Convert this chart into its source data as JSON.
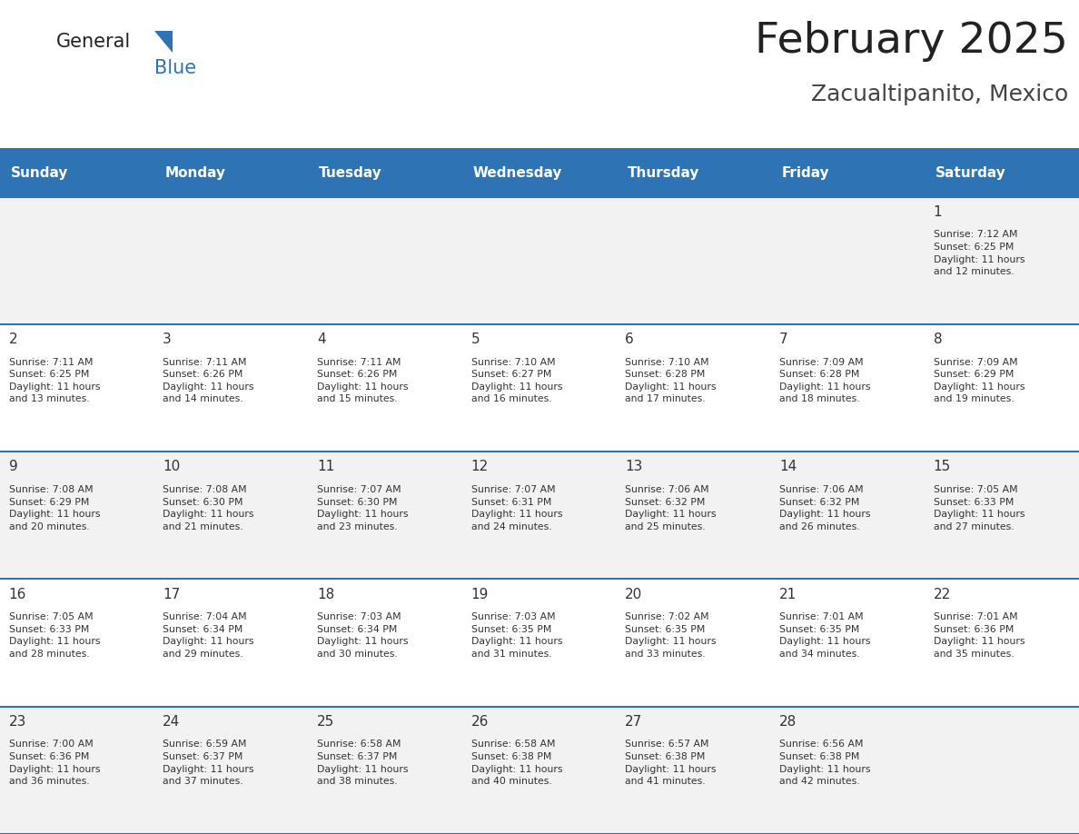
{
  "title": "February 2025",
  "subtitle": "Zacualtipanito, Mexico",
  "days_of_week": [
    "Sunday",
    "Monday",
    "Tuesday",
    "Wednesday",
    "Thursday",
    "Friday",
    "Saturday"
  ],
  "header_bg": "#2E74B5",
  "header_text": "#FFFFFF",
  "row_bg_odd": "#F2F2F2",
  "row_bg_even": "#FFFFFF",
  "separator_color": "#2E74B5",
  "text_color": "#333333",
  "day_num_color": "#333333",
  "calendar_data": [
    [
      null,
      null,
      null,
      null,
      null,
      null,
      1
    ],
    [
      2,
      3,
      4,
      5,
      6,
      7,
      8
    ],
    [
      9,
      10,
      11,
      12,
      13,
      14,
      15
    ],
    [
      16,
      17,
      18,
      19,
      20,
      21,
      22
    ],
    [
      23,
      24,
      25,
      26,
      27,
      28,
      null
    ]
  ],
  "sunrise_data": {
    "1": "7:12 AM",
    "2": "7:11 AM",
    "3": "7:11 AM",
    "4": "7:11 AM",
    "5": "7:10 AM",
    "6": "7:10 AM",
    "7": "7:09 AM",
    "8": "7:09 AM",
    "9": "7:08 AM",
    "10": "7:08 AM",
    "11": "7:07 AM",
    "12": "7:07 AM",
    "13": "7:06 AM",
    "14": "7:06 AM",
    "15": "7:05 AM",
    "16": "7:05 AM",
    "17": "7:04 AM",
    "18": "7:03 AM",
    "19": "7:03 AM",
    "20": "7:02 AM",
    "21": "7:01 AM",
    "22": "7:01 AM",
    "23": "7:00 AM",
    "24": "6:59 AM",
    "25": "6:58 AM",
    "26": "6:58 AM",
    "27": "6:57 AM",
    "28": "6:56 AM"
  },
  "sunset_data": {
    "1": "6:25 PM",
    "2": "6:25 PM",
    "3": "6:26 PM",
    "4": "6:26 PM",
    "5": "6:27 PM",
    "6": "6:28 PM",
    "7": "6:28 PM",
    "8": "6:29 PM",
    "9": "6:29 PM",
    "10": "6:30 PM",
    "11": "6:30 PM",
    "12": "6:31 PM",
    "13": "6:32 PM",
    "14": "6:32 PM",
    "15": "6:33 PM",
    "16": "6:33 PM",
    "17": "6:34 PM",
    "18": "6:34 PM",
    "19": "6:35 PM",
    "20": "6:35 PM",
    "21": "6:35 PM",
    "22": "6:36 PM",
    "23": "6:36 PM",
    "24": "6:37 PM",
    "25": "6:37 PM",
    "26": "6:38 PM",
    "27": "6:38 PM",
    "28": "6:38 PM"
  },
  "daylight_data": {
    "1": "11 hours\nand 12 minutes.",
    "2": "11 hours\nand 13 minutes.",
    "3": "11 hours\nand 14 minutes.",
    "4": "11 hours\nand 15 minutes.",
    "5": "11 hours\nand 16 minutes.",
    "6": "11 hours\nand 17 minutes.",
    "7": "11 hours\nand 18 minutes.",
    "8": "11 hours\nand 19 minutes.",
    "9": "11 hours\nand 20 minutes.",
    "10": "11 hours\nand 21 minutes.",
    "11": "11 hours\nand 23 minutes.",
    "12": "11 hours\nand 24 minutes.",
    "13": "11 hours\nand 25 minutes.",
    "14": "11 hours\nand 26 minutes.",
    "15": "11 hours\nand 27 minutes.",
    "16": "11 hours\nand 28 minutes.",
    "17": "11 hours\nand 29 minutes.",
    "18": "11 hours\nand 30 minutes.",
    "19": "11 hours\nand 31 minutes.",
    "20": "11 hours\nand 33 minutes.",
    "21": "11 hours\nand 34 minutes.",
    "22": "11 hours\nand 35 minutes.",
    "23": "11 hours\nand 36 minutes.",
    "24": "11 hours\nand 37 minutes.",
    "25": "11 hours\nand 38 minutes.",
    "26": "11 hours\nand 40 minutes.",
    "27": "11 hours\nand 41 minutes.",
    "28": "11 hours\nand 42 minutes."
  },
  "logo_general_color": "#222222",
  "logo_blue_color": "#2E74B5",
  "title_color": "#222222",
  "subtitle_color": "#444444",
  "title_fontsize": 34,
  "subtitle_fontsize": 18,
  "header_fontsize": 11,
  "day_num_fontsize": 11,
  "cell_text_fontsize": 7.8
}
